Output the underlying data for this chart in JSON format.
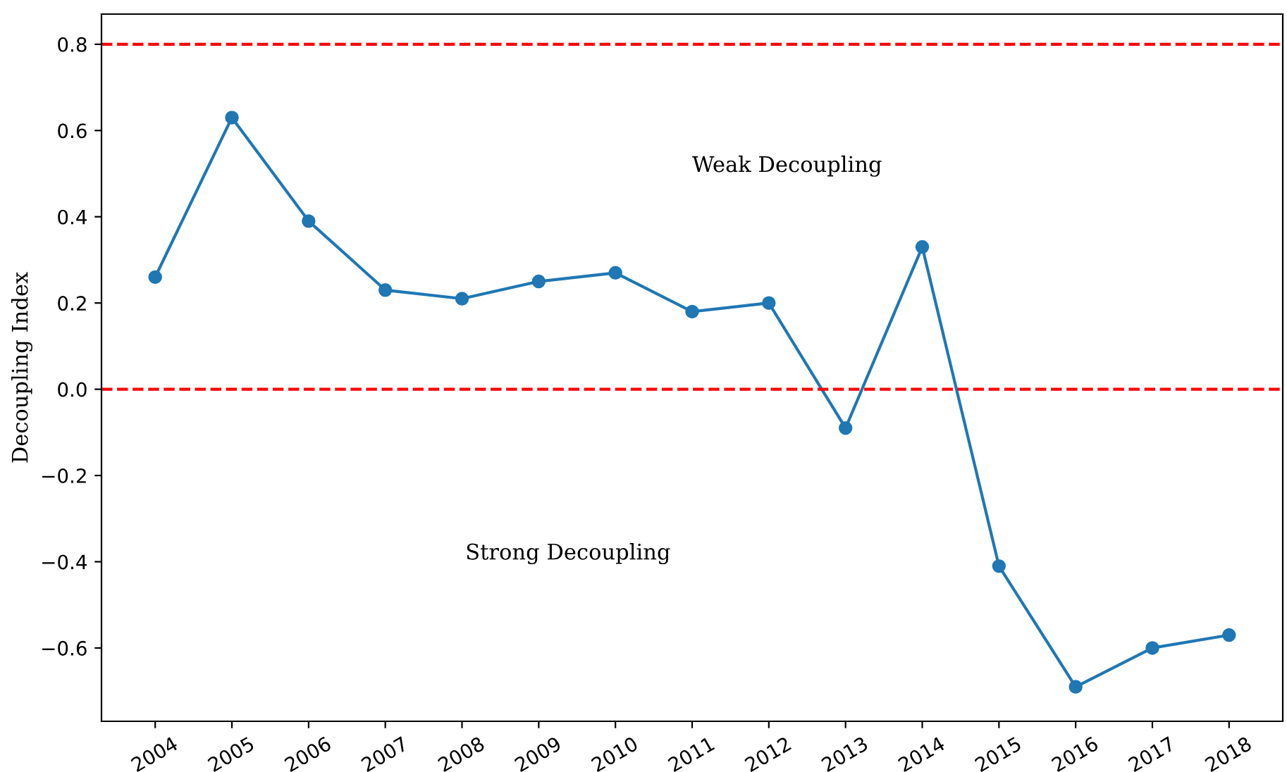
{
  "chart_data": {
    "type": "line",
    "ylabel": "Decoupling Index",
    "categories": [
      "2004",
      "2005",
      "2006",
      "2007",
      "2008",
      "2009",
      "2010",
      "2011",
      "2012",
      "2013",
      "2014",
      "2015",
      "2016",
      "2017",
      "2018"
    ],
    "series": [
      {
        "color": "#1f77b4",
        "values": [
          0.26,
          0.63,
          0.39,
          0.23,
          0.21,
          0.25,
          0.27,
          0.18,
          0.2,
          -0.09,
          0.33,
          -0.41,
          -0.69,
          -0.6,
          -0.57
        ]
      }
    ],
    "marker": "circle",
    "line_style": "solid",
    "grid": false,
    "ylim": [
      -0.77,
      0.87
    ],
    "yticks": [
      {
        "value": -0.6,
        "label": "−0.6"
      },
      {
        "value": -0.4,
        "label": "−0.4"
      },
      {
        "value": -0.2,
        "label": "−0.2"
      },
      {
        "value": 0,
        "label": "0.0"
      },
      0.2,
      0.4,
      0.6,
      0.8
    ],
    "ref_lines": [
      {
        "axis": "y",
        "value": 0.8,
        "color": "#ff0000",
        "line_style": "dashed"
      },
      {
        "axis": "y",
        "value": 0.0,
        "color": "#ff0000",
        "line_style": "dashed"
      }
    ],
    "annotations": [
      "Weak Decoupling",
      "Strong Decoupling"
    ]
  }
}
